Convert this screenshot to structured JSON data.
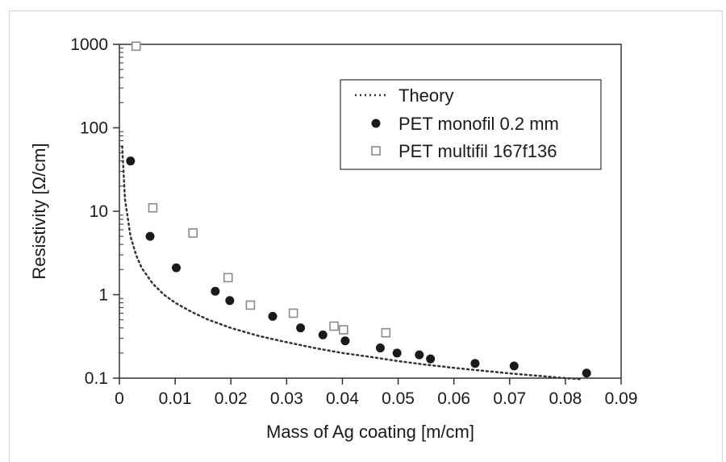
{
  "chart_data": {
    "type": "scatter",
    "title": "",
    "xlabel": "Mass of Ag coating [m/cm]",
    "ylabel": "Resistivity [Ω/cm]",
    "xlim": [
      0,
      0.09
    ],
    "ylim": [
      0.1,
      1000
    ],
    "yscale": "log",
    "grid": false,
    "legend_position": "top-right",
    "x_ticks": [
      "0",
      "0.01",
      "0.02",
      "0.03",
      "0.04",
      "0.05",
      "0.06",
      "0.07",
      "0.08",
      "0.09"
    ],
    "y_ticks": [
      "0.1",
      "1",
      "10",
      "100",
      "1000"
    ],
    "series": [
      {
        "name": "Theory",
        "style": "dotted-line",
        "color": "#333333",
        "x": [
          0.0005,
          0.001,
          0.002,
          0.003,
          0.004,
          0.006,
          0.008,
          0.01,
          0.013,
          0.016,
          0.02,
          0.025,
          0.03,
          0.035,
          0.04,
          0.045,
          0.05,
          0.055,
          0.06,
          0.065,
          0.07,
          0.075,
          0.08,
          0.083
        ],
        "y": [
          60,
          14,
          5,
          3,
          2.1,
          1.35,
          1.0,
          0.8,
          0.62,
          0.5,
          0.4,
          0.32,
          0.27,
          0.23,
          0.2,
          0.18,
          0.16,
          0.145,
          0.133,
          0.123,
          0.114,
          0.107,
          0.1,
          0.097
        ]
      },
      {
        "name": "PET monofil 0.2 mm",
        "style": "filled-circle",
        "color": "#1a1a1a",
        "x": [
          0.002,
          0.0055,
          0.0102,
          0.0172,
          0.0198,
          0.0275,
          0.0325,
          0.0365,
          0.0405,
          0.0468,
          0.0498,
          0.0538,
          0.0558,
          0.0638,
          0.0708,
          0.0838
        ],
        "y": [
          40,
          5.0,
          2.1,
          1.1,
          0.85,
          0.55,
          0.4,
          0.33,
          0.28,
          0.23,
          0.2,
          0.19,
          0.17,
          0.15,
          0.14,
          0.115
        ]
      },
      {
        "name": "PET multifil 167f136",
        "style": "open-square",
        "color": "#8c8c8c",
        "x": [
          0.003,
          0.006,
          0.0132,
          0.0195,
          0.0235,
          0.0312,
          0.0385,
          0.0402,
          0.0478
        ],
        "y": [
          950,
          11,
          5.5,
          1.6,
          0.75,
          0.6,
          0.42,
          0.38,
          0.35
        ]
      }
    ]
  }
}
